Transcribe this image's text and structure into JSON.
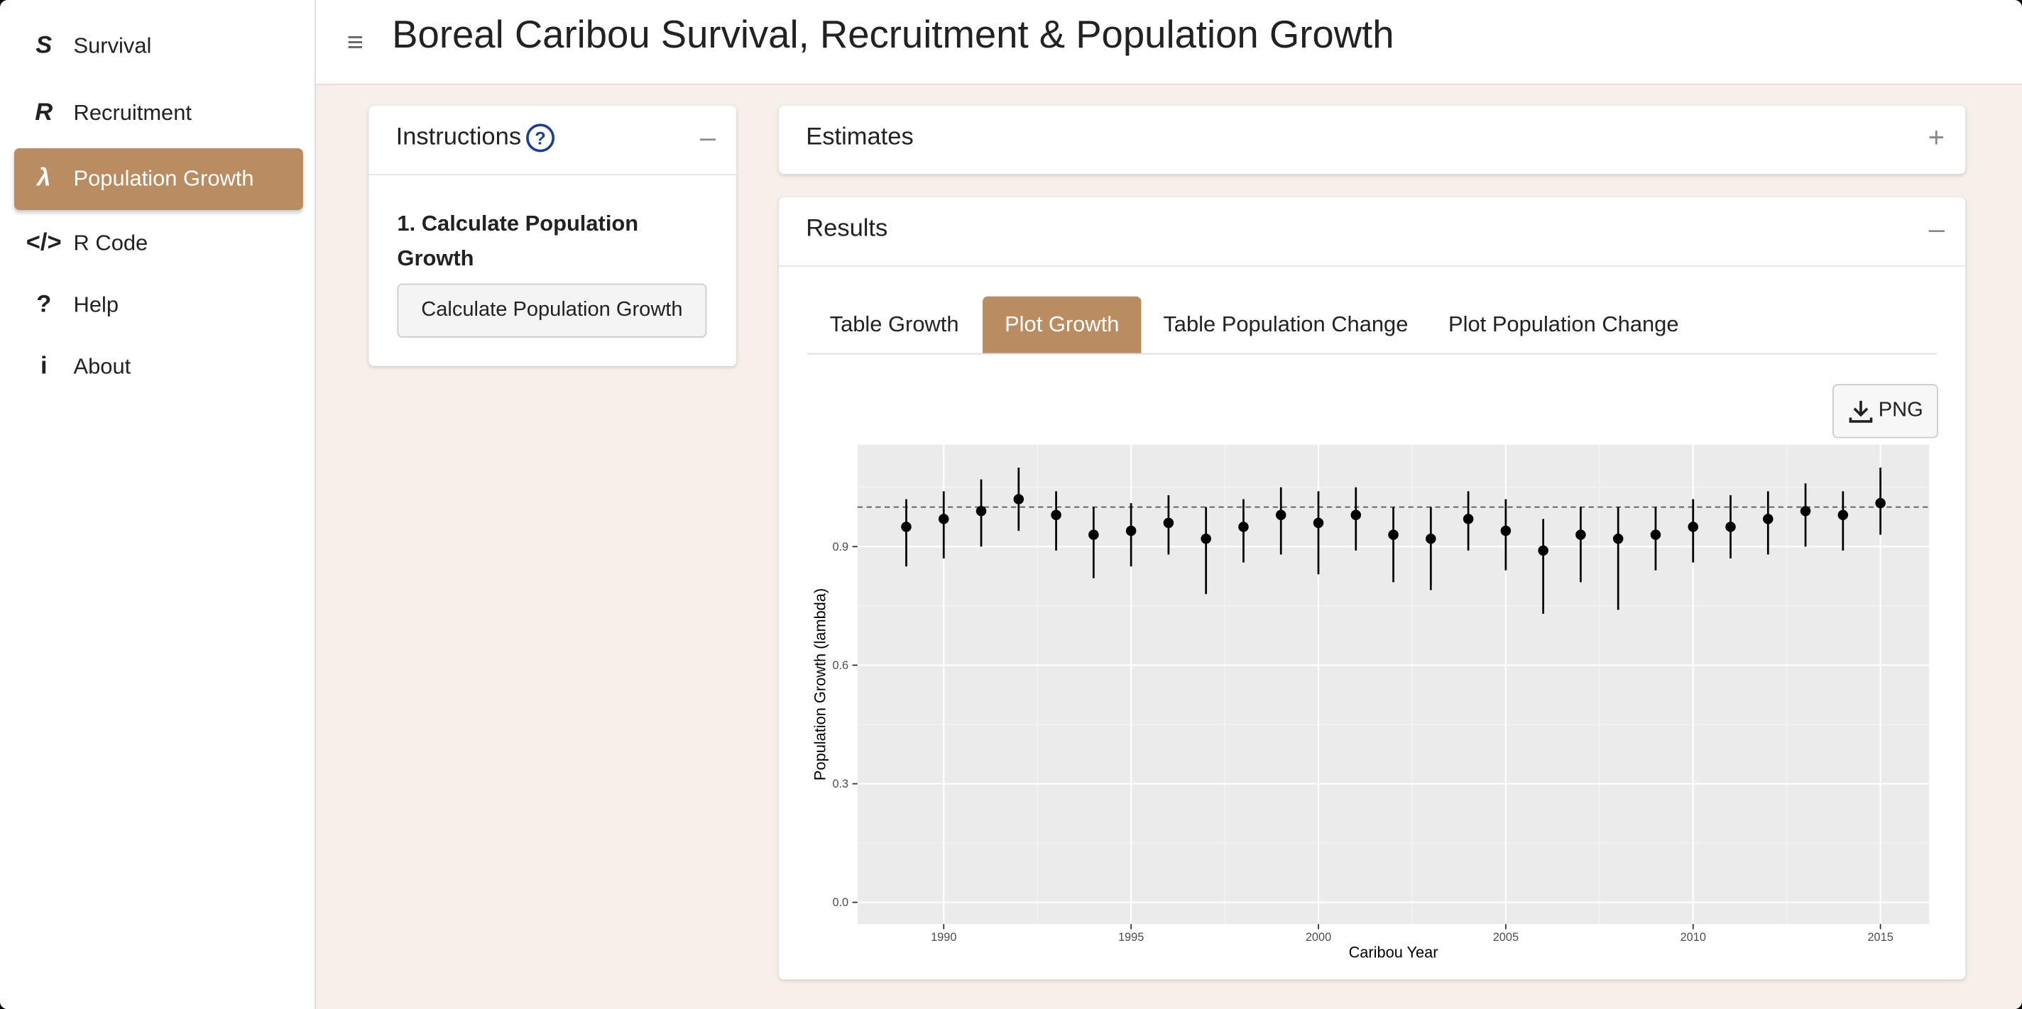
{
  "sidebar": {
    "items": [
      {
        "icon": "S",
        "label": "Survival"
      },
      {
        "icon": "R",
        "label": "Recruitment"
      },
      {
        "icon": "λ",
        "label": "Population Growth"
      },
      {
        "icon": "</>",
        "label": "R Code"
      },
      {
        "icon": "?",
        "label": "Help"
      },
      {
        "icon": "i",
        "label": "About"
      }
    ]
  },
  "header": {
    "title": "Boreal Caribou Survival, Recruitment & Population Growth"
  },
  "instructions": {
    "title": "Instructions",
    "step": "1. Calculate Population Growth",
    "button": "Calculate Population Growth"
  },
  "estimates": {
    "title": "Estimates"
  },
  "results": {
    "title": "Results",
    "tabs": [
      "Table Growth",
      "Plot Growth",
      "Table Population Change",
      "Plot Population Change"
    ],
    "download": "PNG"
  },
  "chart_data": {
    "type": "errorbar",
    "x_label": "Caribou Year",
    "y_label": "Population Growth (lambda)",
    "x": [
      1989,
      1990,
      1991,
      1992,
      1993,
      1994,
      1995,
      1996,
      1997,
      1998,
      1999,
      2000,
      2001,
      2002,
      2003,
      2004,
      2005,
      2006,
      2007,
      2008,
      2009,
      2010,
      2011,
      2012,
      2013,
      2014,
      2015
    ],
    "series": [
      {
        "color": "#000000",
        "values": [
          0.95,
          0.97,
          0.99,
          1.02,
          0.98,
          0.93,
          0.94,
          0.96,
          0.92,
          0.95,
          0.98,
          0.96,
          0.98,
          0.93,
          0.92,
          0.97,
          0.94,
          0.89,
          0.93,
          0.92,
          0.93,
          0.95,
          0.95,
          0.97,
          0.99,
          0.98,
          1.01
        ],
        "lower": [
          0.85,
          0.87,
          0.9,
          0.94,
          0.89,
          0.82,
          0.85,
          0.88,
          0.78,
          0.86,
          0.88,
          0.83,
          0.89,
          0.81,
          0.79,
          0.89,
          0.84,
          0.73,
          0.81,
          0.74,
          0.84,
          0.86,
          0.87,
          0.88,
          0.9,
          0.89,
          0.93
        ],
        "upper": [
          1.02,
          1.04,
          1.07,
          1.1,
          1.04,
          1.0,
          1.01,
          1.03,
          1.0,
          1.02,
          1.05,
          1.04,
          1.05,
          1.0,
          1.0,
          1.04,
          1.02,
          0.97,
          1.0,
          1.0,
          1.0,
          1.02,
          1.03,
          1.04,
          1.06,
          1.04,
          1.1
        ]
      }
    ],
    "reference_line": 1,
    "xlim": [
      1987.7,
      2016.3
    ],
    "ylim": [
      -0.055,
      1.158
    ],
    "xticks": [
      1990,
      1995,
      2000,
      2005,
      2010,
      2015
    ],
    "yticks": [
      {
        "value": 0,
        "label": "0.0"
      },
      0.3,
      0.6,
      0.9
    ],
    "grid": true
  }
}
